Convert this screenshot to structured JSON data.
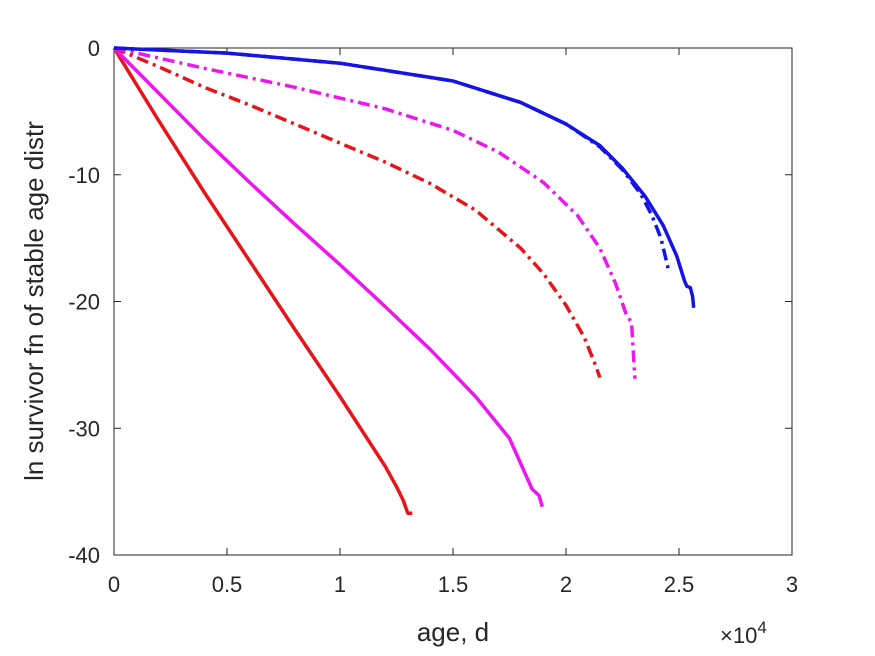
{
  "chart_data": {
    "type": "line",
    "xlabel": "age, d",
    "ylabel": "ln survivor fn of stable age distr",
    "x_exponent_label": "×10",
    "x_exponent_power": "4",
    "xlim": [
      0,
      30000
    ],
    "ylim": [
      -40,
      0
    ],
    "x_ticks": [
      0,
      5000,
      10000,
      15000,
      20000,
      25000,
      30000
    ],
    "x_tick_labels": [
      "0",
      "0.5",
      "1",
      "1.5",
      "2",
      "2.5",
      "3"
    ],
    "y_ticks": [
      0,
      -10,
      -20,
      -30,
      -40
    ],
    "y_tick_labels": [
      "0",
      "-10",
      "-20",
      "-30",
      "-40"
    ],
    "grid": false,
    "series": [
      {
        "color": "#e8141a",
        "style": "solid",
        "x": [
          0,
          2000,
          4000,
          6000,
          8000,
          10000,
          12000,
          12500,
          12800,
          13000,
          13200
        ],
        "y": [
          0,
          -5.8,
          -11.4,
          -16.8,
          -22.2,
          -27.5,
          -33,
          -34.6,
          -35.7,
          -36.7,
          -36.7
        ]
      },
      {
        "color": "#ee16ee",
        "style": "solid",
        "x": [
          0,
          2000,
          4000,
          6000,
          8000,
          10000,
          12000,
          14000,
          16000,
          17500,
          18500,
          18800,
          18950
        ],
        "y": [
          0,
          -3.6,
          -7.2,
          -10.6,
          -13.9,
          -17.1,
          -20.4,
          -23.8,
          -27.5,
          -30.8,
          -34.8,
          -35.3,
          -36.2
        ]
      },
      {
        "color": "#e8141a",
        "style": "dashdot",
        "x": [
          0,
          2000,
          4000,
          6000,
          8000,
          10000,
          12000,
          14000,
          16000,
          18000,
          19000,
          20000,
          20800,
          21300,
          21500
        ],
        "y": [
          0,
          -1.5,
          -3.1,
          -4.5,
          -6.0,
          -7.5,
          -9.0,
          -10.7,
          -12.8,
          -15.8,
          -17.8,
          -20.3,
          -22.8,
          -25.0,
          -26.0
        ]
      },
      {
        "color": "#ee16ee",
        "style": "dashdot",
        "x": [
          0,
          4000,
          8000,
          12000,
          15000,
          17000,
          19000,
          20500,
          21500,
          22200,
          22700,
          22900,
          23050
        ],
        "y": [
          0,
          -1.6,
          -3.1,
          -4.8,
          -6.5,
          -8.2,
          -10.6,
          -13.2,
          -15.8,
          -18.6,
          -21.2,
          -21.6,
          -26.1
        ]
      },
      {
        "color": "#1414e8",
        "style": "dashdot",
        "x": [
          0,
          5000,
          10000,
          15000,
          18000,
          20000,
          21500,
          22500,
          23300,
          23800,
          24200,
          24550
        ],
        "y": [
          0,
          -0.4,
          -1.2,
          -2.6,
          -4.3,
          -6.0,
          -7.8,
          -9.6,
          -11.5,
          -13.2,
          -15.0,
          -17.6
        ]
      },
      {
        "color": "#1414e8",
        "style": "solid",
        "x": [
          0,
          5000,
          10000,
          15000,
          18000,
          20000,
          21500,
          22500,
          23500,
          24300,
          24900,
          25250,
          25350,
          25500,
          25600,
          25650
        ],
        "y": [
          0,
          -0.4,
          -1.2,
          -2.6,
          -4.3,
          -6.0,
          -7.7,
          -9.5,
          -11.7,
          -14.0,
          -16.4,
          -18.4,
          -18.8,
          -18.9,
          -19.6,
          -20.5
        ]
      }
    ]
  }
}
